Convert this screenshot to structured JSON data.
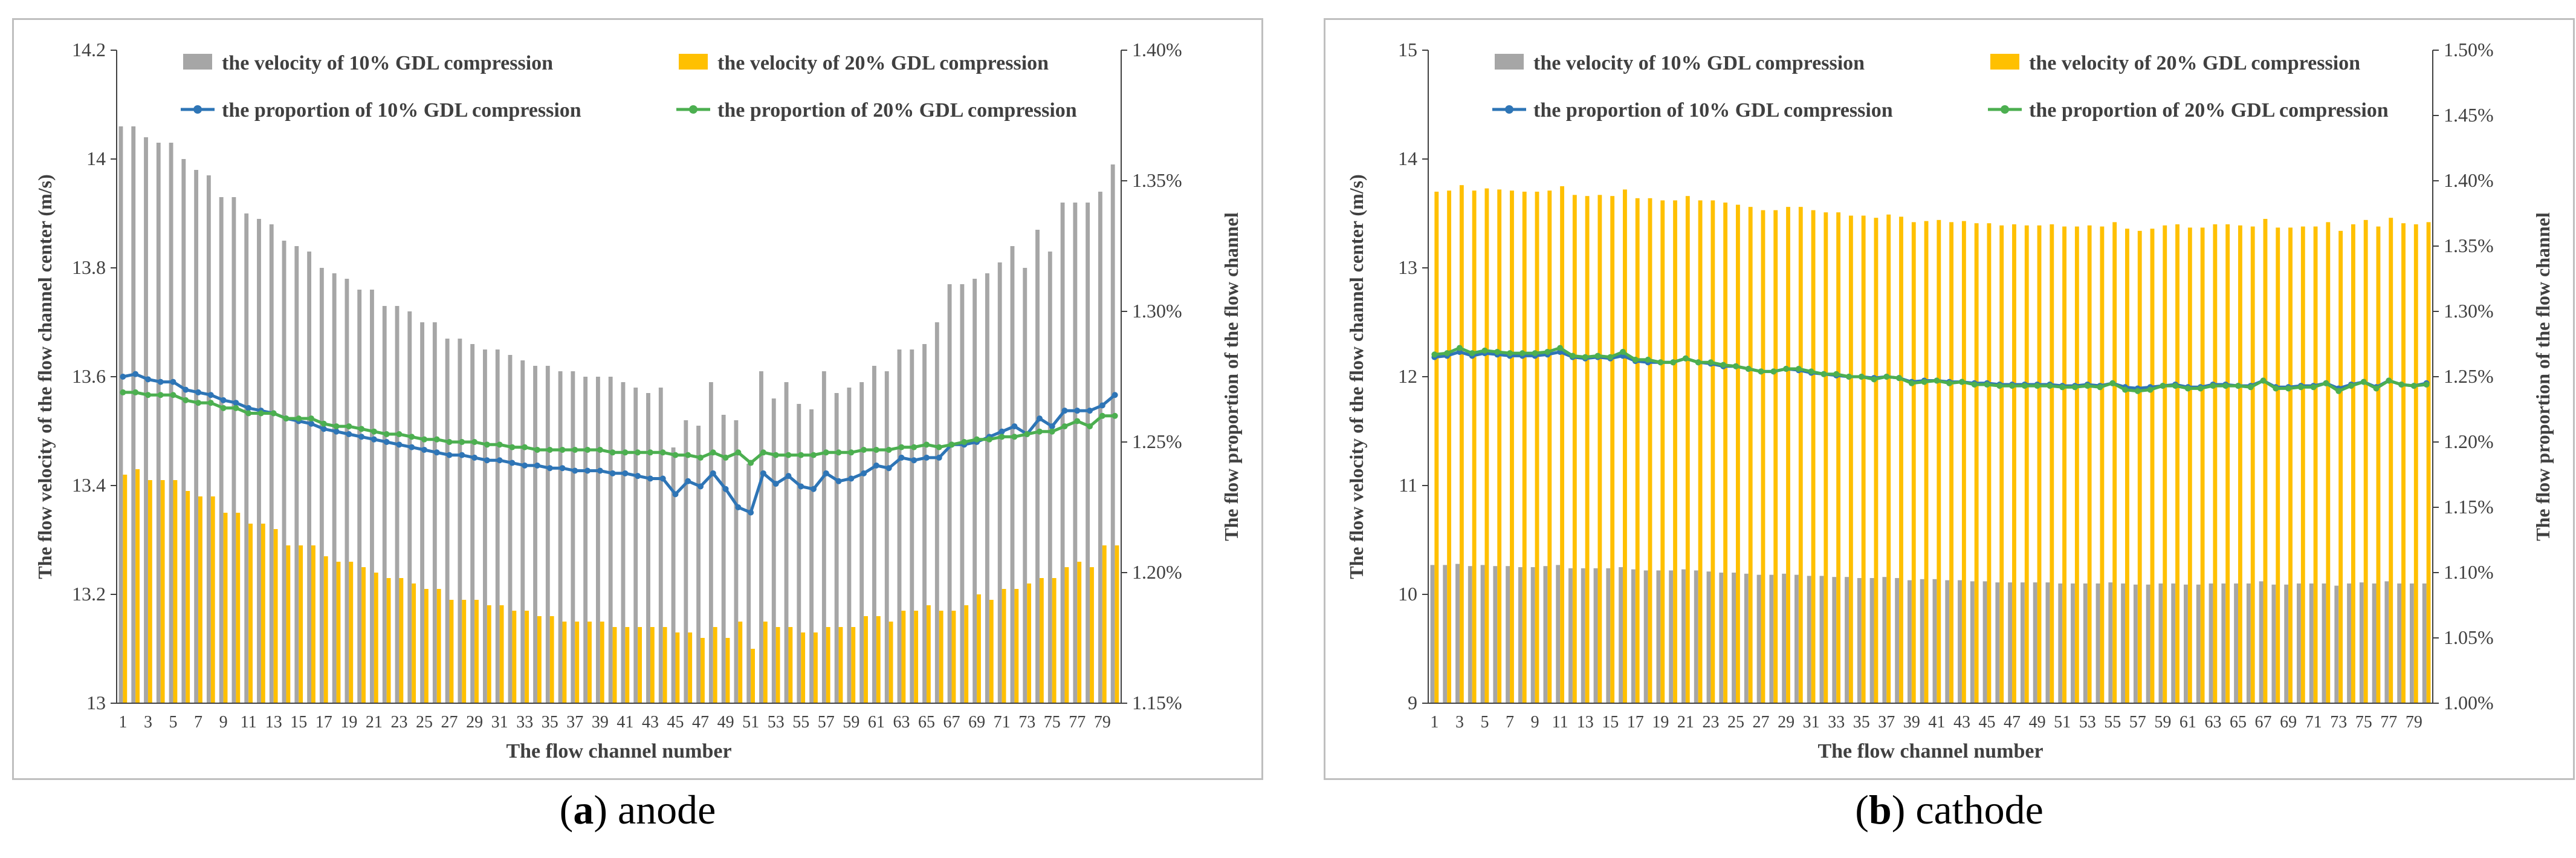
{
  "colors": {
    "bar10": "#a6a6a6",
    "bar20": "#ffc000",
    "line10": "#2e75b6",
    "line20": "#4caf50",
    "axis": "#404040",
    "grid": "#d9d9d9"
  },
  "captions": [
    {
      "letter": "a",
      "text": "anode"
    },
    {
      "letter": "b",
      "text": "cathode"
    }
  ],
  "chart_data": [
    {
      "type": "bar+line",
      "panel": "a",
      "title": "",
      "xlabel": "The flow channel number",
      "ylabel": "The flow velocity of the flow channel center (m/s)",
      "y2label": "The flow proportion of the flow channel",
      "ylim": [
        13,
        14.2
      ],
      "yticks": [
        13,
        13.2,
        13.4,
        13.6,
        13.8,
        14,
        14.2
      ],
      "y2lim": [
        1.15,
        1.4
      ],
      "y2ticks": [
        "1.15%",
        "1.20%",
        "1.25%",
        "1.30%",
        "1.35%",
        "1.40%"
      ],
      "y2tickvalues": [
        1.15,
        1.2,
        1.25,
        1.3,
        1.35,
        1.4
      ],
      "legend": [
        "the velocity of 10% GDL compression",
        "the velocity of 20% GDL compression",
        "the proportion of 10% GDL compression",
        "the proportion of 20% GDL compression"
      ],
      "x": [
        1,
        2,
        3,
        4,
        5,
        6,
        7,
        8,
        9,
        10,
        11,
        12,
        13,
        14,
        15,
        16,
        17,
        18,
        19,
        20,
        21,
        22,
        23,
        24,
        25,
        26,
        27,
        28,
        29,
        30,
        31,
        32,
        33,
        34,
        35,
        36,
        37,
        38,
        39,
        40,
        41,
        42,
        43,
        44,
        45,
        46,
        47,
        48,
        49,
        50,
        51,
        52,
        53,
        54,
        55,
        56,
        57,
        58,
        59,
        60,
        61,
        62,
        63,
        64,
        65,
        66,
        67,
        68,
        69,
        70,
        71,
        72,
        73,
        74,
        75,
        76,
        77,
        78,
        79,
        80
      ],
      "xticklabels": [
        "1",
        "3",
        "5",
        "7",
        "9",
        "11",
        "13",
        "15",
        "17",
        "19",
        "21",
        "23",
        "25",
        "27",
        "29",
        "31",
        "33",
        "35",
        "37",
        "39",
        "41",
        "43",
        "45",
        "47",
        "49",
        "51",
        "53",
        "55",
        "57",
        "59",
        "61",
        "63",
        "65",
        "67",
        "69",
        "71",
        "73",
        "75",
        "77",
        "79"
      ],
      "series": [
        {
          "name": "the velocity of 10% GDL compression",
          "kind": "bar",
          "axis": "left",
          "values": [
            14.06,
            14.06,
            14.04,
            14.03,
            14.03,
            14.0,
            13.98,
            13.97,
            13.93,
            13.93,
            13.9,
            13.89,
            13.88,
            13.85,
            13.84,
            13.83,
            13.8,
            13.79,
            13.78,
            13.76,
            13.76,
            13.73,
            13.73,
            13.72,
            13.7,
            13.7,
            13.67,
            13.67,
            13.66,
            13.65,
            13.65,
            13.64,
            13.63,
            13.62,
            13.62,
            13.61,
            13.61,
            13.6,
            13.6,
            13.6,
            13.59,
            13.58,
            13.57,
            13.58,
            13.47,
            13.52,
            13.51,
            13.59,
            13.53,
            13.52,
            13.44,
            13.61,
            13.56,
            13.59,
            13.55,
            13.54,
            13.61,
            13.57,
            13.58,
            13.59,
            13.62,
            13.61,
            13.65,
            13.65,
            13.66,
            13.7,
            13.77,
            13.77,
            13.78,
            13.79,
            13.81,
            13.84,
            13.8,
            13.87,
            13.83,
            13.92,
            13.92,
            13.92,
            13.94,
            13.99
          ]
        },
        {
          "name": "the velocity of 20% GDL compression",
          "kind": "bar",
          "axis": "left",
          "values": [
            13.42,
            13.43,
            13.41,
            13.41,
            13.41,
            13.39,
            13.38,
            13.38,
            13.35,
            13.35,
            13.33,
            13.33,
            13.32,
            13.29,
            13.29,
            13.29,
            13.27,
            13.26,
            13.26,
            13.25,
            13.24,
            13.23,
            13.23,
            13.22,
            13.21,
            13.21,
            13.19,
            13.19,
            13.19,
            13.18,
            13.18,
            13.17,
            13.17,
            13.16,
            13.16,
            13.15,
            13.15,
            13.15,
            13.15,
            13.14,
            13.14,
            13.14,
            13.14,
            13.14,
            13.13,
            13.13,
            13.12,
            13.14,
            13.12,
            13.15,
            13.1,
            13.15,
            13.14,
            13.14,
            13.13,
            13.13,
            13.14,
            13.14,
            13.14,
            13.16,
            13.16,
            13.15,
            13.17,
            13.17,
            13.18,
            13.17,
            13.17,
            13.18,
            13.2,
            13.19,
            13.21,
            13.21,
            13.22,
            13.23,
            13.23,
            13.25,
            13.26,
            13.25,
            13.29,
            13.29
          ]
        },
        {
          "name": "the proportion of 10% GDL compression",
          "kind": "line",
          "axis": "right",
          "values": [
            1.275,
            1.276,
            1.274,
            1.273,
            1.273,
            1.27,
            1.269,
            1.268,
            1.266,
            1.265,
            1.263,
            1.262,
            1.261,
            1.259,
            1.258,
            1.257,
            1.255,
            1.254,
            1.253,
            1.252,
            1.251,
            1.25,
            1.249,
            1.248,
            1.247,
            1.246,
            1.245,
            1.245,
            1.244,
            1.243,
            1.243,
            1.242,
            1.241,
            1.241,
            1.24,
            1.24,
            1.239,
            1.239,
            1.239,
            1.238,
            1.238,
            1.237,
            1.236,
            1.236,
            1.23,
            1.235,
            1.233,
            1.238,
            1.232,
            1.225,
            1.223,
            1.238,
            1.234,
            1.237,
            1.233,
            1.232,
            1.238,
            1.235,
            1.236,
            1.238,
            1.241,
            1.24,
            1.244,
            1.243,
            1.244,
            1.244,
            1.249,
            1.249,
            1.25,
            1.252,
            1.254,
            1.256,
            1.253,
            1.259,
            1.256,
            1.262,
            1.262,
            1.262,
            1.264,
            1.268
          ]
        },
        {
          "name": "the proportion of 20% GDL compression",
          "kind": "line",
          "axis": "right",
          "values": [
            1.269,
            1.269,
            1.268,
            1.268,
            1.268,
            1.266,
            1.265,
            1.265,
            1.263,
            1.263,
            1.261,
            1.261,
            1.261,
            1.259,
            1.259,
            1.259,
            1.257,
            1.256,
            1.256,
            1.255,
            1.254,
            1.253,
            1.253,
            1.252,
            1.251,
            1.251,
            1.25,
            1.25,
            1.25,
            1.249,
            1.249,
            1.248,
            1.248,
            1.247,
            1.247,
            1.247,
            1.247,
            1.247,
            1.247,
            1.246,
            1.246,
            1.246,
            1.246,
            1.246,
            1.245,
            1.245,
            1.244,
            1.246,
            1.244,
            1.246,
            1.242,
            1.246,
            1.245,
            1.245,
            1.245,
            1.245,
            1.246,
            1.246,
            1.246,
            1.247,
            1.247,
            1.247,
            1.248,
            1.248,
            1.249,
            1.248,
            1.249,
            1.25,
            1.251,
            1.251,
            1.252,
            1.252,
            1.253,
            1.254,
            1.254,
            1.256,
            1.258,
            1.256,
            1.26,
            1.26
          ]
        }
      ]
    },
    {
      "type": "bar+line",
      "panel": "b",
      "title": "",
      "xlabel": "The flow channel number",
      "ylabel": "The flow velocity of the flow channel center (m/s)",
      "y2label": "The flow proportion of the flow channel",
      "ylim": [
        9,
        15
      ],
      "yticks": [
        9,
        10,
        11,
        12,
        13,
        14,
        15
      ],
      "y2lim": [
        1.0,
        1.5
      ],
      "y2ticks": [
        "1.00%",
        "1.05%",
        "1.10%",
        "1.15%",
        "1.20%",
        "1.25%",
        "1.30%",
        "1.35%",
        "1.40%",
        "1.45%",
        "1.50%"
      ],
      "y2tickvalues": [
        1.0,
        1.05,
        1.1,
        1.15,
        1.2,
        1.25,
        1.3,
        1.35,
        1.4,
        1.45,
        1.5
      ],
      "legend": [
        "the velocity of 10% GDL compression",
        "the velocity of 20% GDL compression",
        "the proportion of 10% GDL compression",
        "the proportion of 20% GDL compression"
      ],
      "x": [
        1,
        2,
        3,
        4,
        5,
        6,
        7,
        8,
        9,
        10,
        11,
        12,
        13,
        14,
        15,
        16,
        17,
        18,
        19,
        20,
        21,
        22,
        23,
        24,
        25,
        26,
        27,
        28,
        29,
        30,
        31,
        32,
        33,
        34,
        35,
        36,
        37,
        38,
        39,
        40,
        41,
        42,
        43,
        44,
        45,
        46,
        47,
        48,
        49,
        50,
        51,
        52,
        53,
        54,
        55,
        56,
        57,
        58,
        59,
        60,
        61,
        62,
        63,
        64,
        65,
        66,
        67,
        68,
        69,
        70,
        71,
        72,
        73,
        74,
        75,
        76,
        77,
        78,
        79,
        80
      ],
      "xticklabels": [
        "1",
        "3",
        "5",
        "7",
        "9",
        "11",
        "13",
        "15",
        "17",
        "19",
        "21",
        "23",
        "25",
        "27",
        "29",
        "31",
        "33",
        "35",
        "37",
        "39",
        "41",
        "43",
        "45",
        "47",
        "49",
        "51",
        "53",
        "55",
        "57",
        "59",
        "61",
        "63",
        "65",
        "67",
        "69",
        "71",
        "73",
        "75",
        "77",
        "79"
      ],
      "series": [
        {
          "name": "the velocity of 10% GDL compression",
          "kind": "bar",
          "axis": "left",
          "values": [
            10.27,
            10.27,
            10.28,
            10.26,
            10.27,
            10.26,
            10.26,
            10.25,
            10.25,
            10.26,
            10.27,
            10.24,
            10.24,
            10.24,
            10.24,
            10.25,
            10.23,
            10.22,
            10.22,
            10.22,
            10.23,
            10.22,
            10.21,
            10.2,
            10.2,
            10.19,
            10.18,
            10.18,
            10.19,
            10.18,
            10.17,
            10.17,
            10.16,
            10.16,
            10.15,
            10.15,
            10.16,
            10.15,
            10.13,
            10.14,
            10.14,
            10.13,
            10.13,
            10.12,
            10.12,
            10.11,
            10.11,
            10.11,
            10.11,
            10.11,
            10.1,
            10.1,
            10.1,
            10.1,
            10.11,
            10.1,
            10.09,
            10.09,
            10.1,
            10.1,
            10.09,
            10.09,
            10.1,
            10.1,
            10.1,
            10.1,
            10.12,
            10.09,
            10.09,
            10.1,
            10.1,
            10.1,
            10.08,
            10.1,
            10.11,
            10.1,
            10.12,
            10.1,
            10.1,
            10.1
          ]
        },
        {
          "name": "the velocity of 20% GDL compression",
          "kind": "bar",
          "axis": "left",
          "values": [
            13.7,
            13.71,
            13.76,
            13.71,
            13.73,
            13.72,
            13.71,
            13.7,
            13.7,
            13.71,
            13.75,
            13.67,
            13.66,
            13.67,
            13.66,
            13.72,
            13.64,
            13.64,
            13.62,
            13.62,
            13.66,
            13.62,
            13.62,
            13.6,
            13.58,
            13.56,
            13.53,
            13.53,
            13.56,
            13.56,
            13.53,
            13.51,
            13.51,
            13.48,
            13.48,
            13.46,
            13.49,
            13.47,
            13.42,
            13.43,
            13.44,
            13.42,
            13.43,
            13.41,
            13.41,
            13.39,
            13.4,
            13.39,
            13.39,
            13.4,
            13.38,
            13.38,
            13.39,
            13.38,
            13.42,
            13.36,
            13.34,
            13.36,
            13.39,
            13.4,
            13.37,
            13.37,
            13.4,
            13.4,
            13.39,
            13.38,
            13.45,
            13.37,
            13.37,
            13.38,
            13.38,
            13.42,
            13.34,
            13.4,
            13.44,
            13.38,
            13.46,
            13.41,
            13.4,
            13.42
          ]
        },
        {
          "name": "the proportion of 10% GDL compression",
          "kind": "line",
          "axis": "right",
          "values": [
            1.265,
            1.266,
            1.269,
            1.266,
            1.268,
            1.267,
            1.266,
            1.266,
            1.266,
            1.267,
            1.269,
            1.265,
            1.264,
            1.265,
            1.264,
            1.266,
            1.262,
            1.261,
            1.261,
            1.261,
            1.264,
            1.261,
            1.26,
            1.258,
            1.258,
            1.256,
            1.254,
            1.254,
            1.256,
            1.255,
            1.253,
            1.252,
            1.251,
            1.25,
            1.25,
            1.249,
            1.25,
            1.249,
            1.246,
            1.247,
            1.247,
            1.246,
            1.246,
            1.245,
            1.245,
            1.244,
            1.244,
            1.244,
            1.244,
            1.244,
            1.243,
            1.243,
            1.244,
            1.243,
            1.245,
            1.242,
            1.241,
            1.242,
            1.243,
            1.244,
            1.242,
            1.242,
            1.244,
            1.244,
            1.243,
            1.243,
            1.247,
            1.242,
            1.242,
            1.243,
            1.243,
            1.245,
            1.241,
            1.244,
            1.246,
            1.242,
            1.247,
            1.244,
            1.243,
            1.245
          ]
        },
        {
          "name": "the proportion of 20% GDL compression",
          "kind": "line",
          "axis": "right",
          "values": [
            1.267,
            1.268,
            1.272,
            1.268,
            1.27,
            1.269,
            1.268,
            1.268,
            1.268,
            1.269,
            1.272,
            1.266,
            1.265,
            1.266,
            1.265,
            1.269,
            1.263,
            1.263,
            1.261,
            1.261,
            1.264,
            1.261,
            1.261,
            1.259,
            1.258,
            1.256,
            1.254,
            1.254,
            1.256,
            1.256,
            1.254,
            1.252,
            1.252,
            1.25,
            1.25,
            1.248,
            1.25,
            1.249,
            1.245,
            1.246,
            1.247,
            1.245,
            1.246,
            1.244,
            1.244,
            1.243,
            1.243,
            1.243,
            1.243,
            1.243,
            1.242,
            1.242,
            1.243,
            1.242,
            1.245,
            1.24,
            1.239,
            1.24,
            1.243,
            1.243,
            1.241,
            1.241,
            1.243,
            1.243,
            1.243,
            1.242,
            1.247,
            1.241,
            1.241,
            1.242,
            1.242,
            1.245,
            1.239,
            1.243,
            1.246,
            1.241,
            1.247,
            1.244,
            1.243,
            1.244
          ]
        }
      ]
    }
  ]
}
